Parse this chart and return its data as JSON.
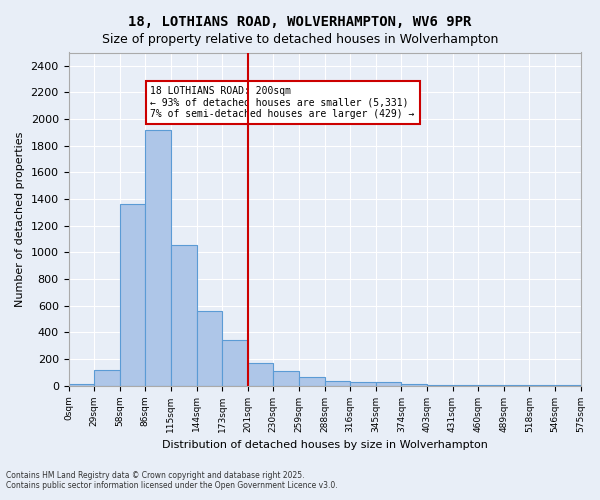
{
  "title_line1": "18, LOTHIANS ROAD, WOLVERHAMPTON, WV6 9PR",
  "title_line2": "Size of property relative to detached houses in Wolverhampton",
  "xlabel": "Distribution of detached houses by size in Wolverhampton",
  "ylabel": "Number of detached properties",
  "footer_line1": "Contains HM Land Registry data © Crown copyright and database right 2025.",
  "footer_line2": "Contains public sector information licensed under the Open Government Licence v3.0.",
  "annotation_line1": "18 LOTHIANS ROAD: 200sqm",
  "annotation_line2": "← 93% of detached houses are smaller (5,331)",
  "annotation_line3": "7% of semi-detached houses are larger (429) →",
  "bar_values": [
    10,
    120,
    1360,
    1920,
    1055,
    560,
    340,
    170,
    110,
    65,
    38,
    30,
    25,
    15,
    5,
    5,
    5,
    3,
    3,
    2
  ],
  "bin_labels": [
    "0sqm",
    "29sqm",
    "58sqm",
    "86sqm",
    "115sqm",
    "144sqm",
    "173sqm",
    "201sqm",
    "230sqm",
    "259sqm",
    "288sqm",
    "316sqm",
    "345sqm",
    "374sqm",
    "403sqm",
    "431sqm",
    "460sqm",
    "489sqm",
    "518sqm",
    "546sqm",
    "575sqm"
  ],
  "bar_color": "#aec6e8",
  "bar_edge_color": "#5b9bd5",
  "vline_color": "#cc0000",
  "annotation_box_color": "#cc0000",
  "background_color": "#e8eef7",
  "grid_color": "#ffffff",
  "ylim": [
    0,
    2500
  ],
  "yticks": [
    0,
    200,
    400,
    600,
    800,
    1000,
    1200,
    1400,
    1600,
    1800,
    2000,
    2200,
    2400
  ]
}
